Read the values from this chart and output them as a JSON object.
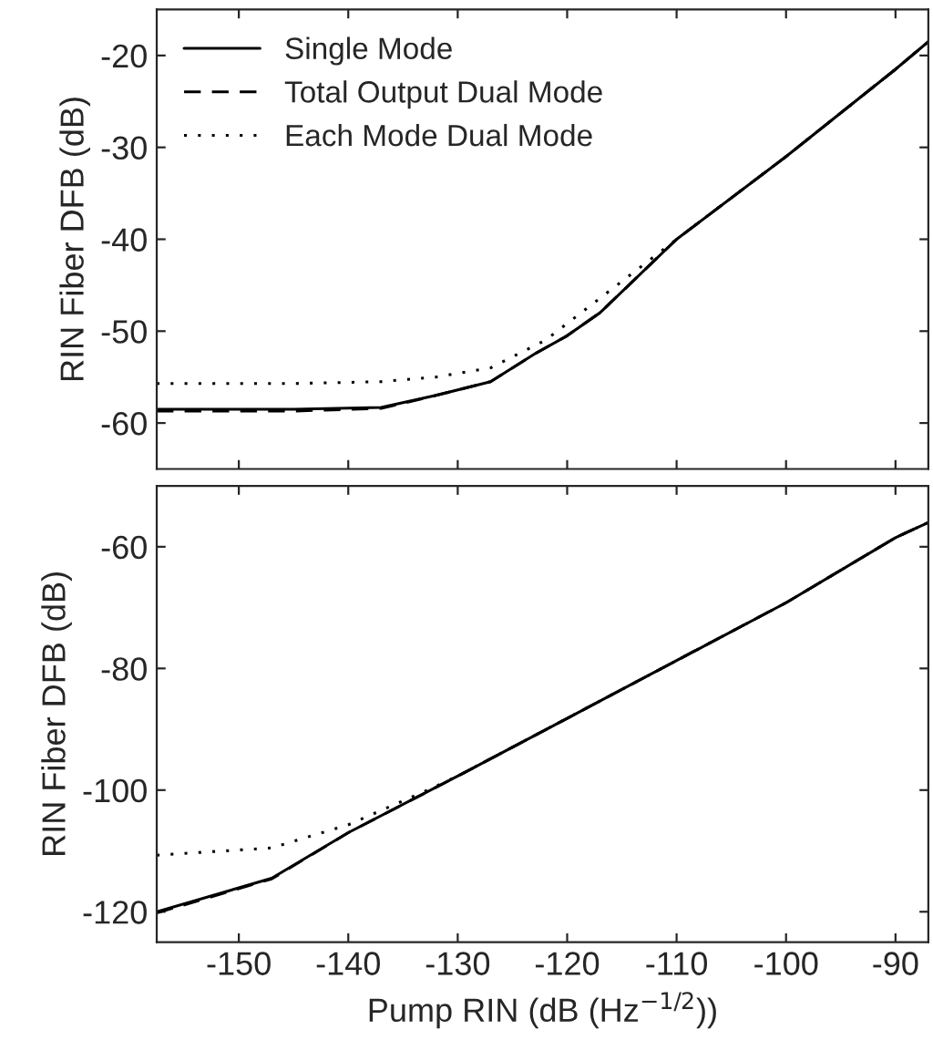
{
  "chart_data": [
    {
      "type": "line",
      "ylabel": "RIN Fiber DFB (dB)",
      "xlim": [
        -157.5,
        -87
      ],
      "ylim": [
        -65,
        -15
      ],
      "xticks": [
        -150,
        -140,
        -130,
        -120,
        -110,
        -100,
        -90
      ],
      "yticks": [
        -60,
        -50,
        -40,
        -30,
        -20
      ],
      "tick_labels": "y",
      "legend": "top left",
      "grid": false,
      "series": [
        {
          "name": "Single Mode",
          "color": "#000000",
          "line_style": "solid",
          "x": [
            -157.5,
            -145,
            -137,
            -132,
            -127,
            -123,
            -120,
            -117,
            -110,
            -100,
            -90,
            -87
          ],
          "values": [
            -58.5,
            -58.5,
            -58.3,
            -57,
            -55.5,
            -52.5,
            -50.5,
            -48,
            -40,
            -31,
            -21.5,
            -18.5
          ]
        },
        {
          "name": "Total Output Dual Mode",
          "color": "#000000",
          "line_style": "dashed",
          "x": [
            -157.5,
            -145,
            -137,
            -132,
            -127,
            -123,
            -120,
            -117,
            -110,
            -100,
            -90,
            -87
          ],
          "values": [
            -58.7,
            -58.7,
            -58.4,
            -57,
            -55.5,
            -52.5,
            -50.5,
            -48,
            -40,
            -31,
            -21.5,
            -18.5
          ]
        },
        {
          "name": "Each Mode Dual Mode",
          "color": "#000000",
          "line_style": "dotted",
          "x": [
            -157.5,
            -145,
            -137,
            -132,
            -127,
            -122,
            -116,
            -110,
            -100,
            -90,
            -87
          ],
          "values": [
            -55.7,
            -55.7,
            -55.5,
            -55,
            -54,
            -51,
            -45.5,
            -40,
            -31,
            -21.5,
            -18.5
          ]
        }
      ]
    },
    {
      "type": "line",
      "xlabel": "Pump RIN (dB (Hz$^{−1/2}$))",
      "ylabel": "RIN Fiber DFB (dB)",
      "xlim": [
        -157.5,
        -87
      ],
      "ylim": [
        -125,
        -50
      ],
      "xticks": [
        -150,
        -140,
        -130,
        -120,
        -110,
        -100,
        -90
      ],
      "yticks": [
        -120,
        -100,
        -80,
        -60
      ],
      "legend": false,
      "grid": false,
      "series": [
        {
          "color": "#000000",
          "line_style": "solid",
          "x": [
            -157.5,
            -147,
            -140,
            -130,
            -120,
            -110,
            -100,
            -90,
            -87
          ],
          "values": [
            -120,
            -114.5,
            -107,
            -97.7,
            -88.2,
            -78.7,
            -69.2,
            -58.5,
            -56
          ]
        },
        {
          "color": "#000000",
          "line_style": "dashed",
          "x": [
            -157.5,
            -147,
            -140,
            -130,
            -120,
            -110,
            -100,
            -90,
            -87
          ],
          "values": [
            -120.2,
            -114.6,
            -107,
            -97.7,
            -88.2,
            -78.7,
            -69.2,
            -58.5,
            -56
          ]
        },
        {
          "color": "#000000",
          "line_style": "dotted",
          "x": [
            -157.5,
            -147,
            -140,
            -133,
            -130,
            -120,
            -110,
            -100,
            -90,
            -87
          ],
          "values": [
            -110.7,
            -109.5,
            -105.7,
            -100.2,
            -97.7,
            -88.2,
            -78.7,
            -69.2,
            -58.5,
            -56
          ]
        }
      ]
    }
  ]
}
